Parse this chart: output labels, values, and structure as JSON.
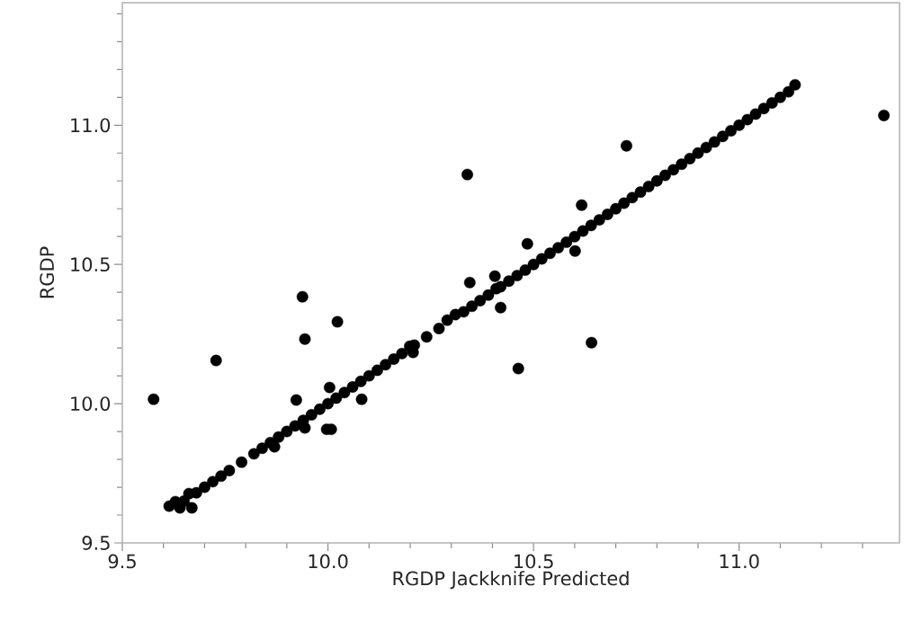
{
  "chart_data": {
    "type": "scatter",
    "xlabel": "RGDP Jackknife Predicted",
    "ylabel": "RGDP",
    "marker": "circle",
    "grid": false,
    "xlim": [
      9.5,
      11.39
    ],
    "ylim": [
      9.5,
      11.44
    ],
    "xticks": [
      9.5,
      {
        "value": 9.6,
        "label": null
      },
      {
        "value": 9.7,
        "label": null
      },
      {
        "value": 9.8,
        "label": null
      },
      {
        "value": 9.9,
        "label": null
      },
      {
        "value": 10.0,
        "label": "10.0"
      },
      {
        "value": 10.1,
        "label": null
      },
      {
        "value": 10.2,
        "label": null
      },
      {
        "value": 10.3,
        "label": null
      },
      {
        "value": 10.4,
        "label": null
      },
      10.5,
      {
        "value": 10.6,
        "label": null
      },
      {
        "value": 10.7,
        "label": null
      },
      {
        "value": 10.8,
        "label": null
      },
      {
        "value": 10.9,
        "label": null
      },
      {
        "value": 11.0,
        "label": "11.0"
      },
      {
        "value": 11.1,
        "label": null
      },
      {
        "value": 11.2,
        "label": null
      },
      {
        "value": 11.3,
        "label": null
      }
    ],
    "yticks": [
      9.5,
      {
        "value": 9.6,
        "label": null
      },
      {
        "value": 9.7,
        "label": null
      },
      {
        "value": 9.8,
        "label": null
      },
      {
        "value": 9.9,
        "label": null
      },
      {
        "value": 10.0,
        "label": "10.0"
      },
      {
        "value": 10.1,
        "label": null
      },
      {
        "value": 10.2,
        "label": null
      },
      {
        "value": 10.3,
        "label": null
      },
      {
        "value": 10.4,
        "label": null
      },
      10.5,
      {
        "value": 10.6,
        "label": null
      },
      {
        "value": 10.7,
        "label": null
      },
      {
        "value": 10.8,
        "label": null
      },
      {
        "value": 10.9,
        "label": null
      },
      {
        "value": 11.0,
        "label": "11.0"
      },
      {
        "value": 11.1,
        "label": null
      },
      {
        "value": 11.2,
        "label": null
      },
      {
        "value": 11.3,
        "label": null
      },
      {
        "value": 11.4,
        "label": null
      }
    ],
    "series": [
      {
        "color": "#000000",
        "x": [
          9.576,
          9.728,
          9.938,
          9.944,
          10.023,
          10.339,
          10.726,
          10.345,
          10.485,
          10.617,
          10.601,
          10.42,
          10.641,
          10.463,
          10.406,
          10.409,
          10.207,
          10.199,
          9.923,
          10.082,
          9.997,
          10.008,
          9.944,
          10.004,
          9.87,
          9.662,
          9.669,
          9.614,
          9.629,
          9.64,
          11.352,
          11.136,
          9.65,
          9.68,
          9.7,
          9.72,
          9.74,
          9.76,
          9.79,
          9.82,
          9.84,
          9.86,
          9.88,
          9.9,
          9.92,
          9.94,
          9.96,
          9.98,
          10.0,
          10.02,
          10.04,
          10.06,
          10.08,
          10.1,
          10.12,
          10.14,
          10.16,
          10.18,
          10.21,
          10.24,
          10.27,
          10.29,
          10.31,
          10.33,
          10.35,
          10.37,
          10.39,
          10.42,
          10.44,
          10.46,
          10.48,
          10.5,
          10.52,
          10.54,
          10.56,
          10.58,
          10.6,
          10.62,
          10.64,
          10.66,
          10.68,
          10.7,
          10.72,
          10.74,
          10.76,
          10.78,
          10.8,
          10.82,
          10.84,
          10.86,
          10.88,
          10.9,
          10.92,
          10.94,
          10.96,
          10.98,
          11.0,
          11.02,
          11.04,
          11.06,
          11.08,
          11.1,
          11.12
        ],
        "values": [
          10.016,
          10.155,
          10.384,
          10.232,
          10.294,
          10.823,
          10.926,
          10.435,
          10.574,
          10.713,
          10.548,
          10.345,
          10.219,
          10.126,
          10.458,
          10.413,
          10.184,
          10.206,
          10.013,
          10.016,
          9.908,
          9.908,
          9.913,
          10.058,
          9.845,
          9.677,
          9.626,
          9.632,
          9.648,
          9.626,
          11.035,
          11.145,
          9.65,
          9.68,
          9.7,
          9.72,
          9.74,
          9.76,
          9.79,
          9.82,
          9.84,
          9.86,
          9.88,
          9.9,
          9.92,
          9.94,
          9.96,
          9.98,
          10.0,
          10.02,
          10.04,
          10.06,
          10.08,
          10.1,
          10.12,
          10.14,
          10.16,
          10.18,
          10.21,
          10.24,
          10.27,
          10.3,
          10.32,
          10.33,
          10.35,
          10.37,
          10.39,
          10.42,
          10.44,
          10.46,
          10.48,
          10.5,
          10.52,
          10.54,
          10.56,
          10.58,
          10.6,
          10.62,
          10.64,
          10.66,
          10.68,
          10.7,
          10.72,
          10.74,
          10.76,
          10.78,
          10.8,
          10.82,
          10.84,
          10.86,
          10.88,
          10.9,
          10.92,
          10.94,
          10.96,
          10.98,
          11.0,
          11.02,
          11.04,
          11.06,
          11.08,
          11.1,
          11.12
        ]
      }
    ]
  }
}
